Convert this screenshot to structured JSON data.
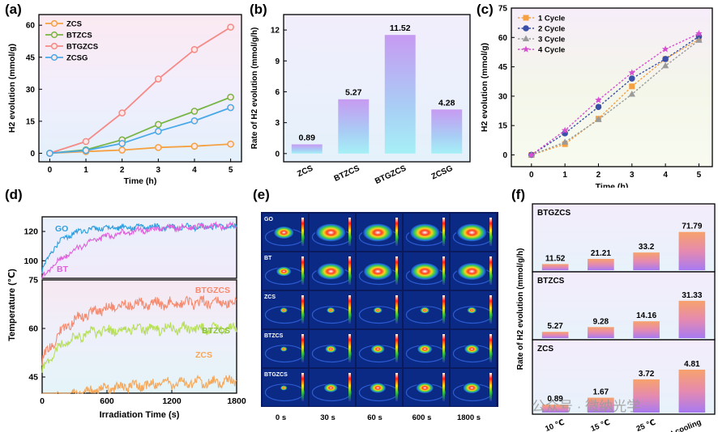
{
  "panel_labels": {
    "a": "(a)",
    "b": "(b)",
    "c": "(c)",
    "d": "(d)",
    "e": "(e)",
    "f": "(f)"
  },
  "watermark": "公众号 · 微纳光学",
  "chart_data": [
    {
      "id": "a",
      "type": "line",
      "xlabel": "Time (h)",
      "ylabel": "H2 evolution (mmol/g)",
      "x": [
        0,
        1,
        2,
        3,
        4,
        5
      ],
      "xticks": [
        "0",
        "1",
        "2",
        "3",
        "4",
        "5"
      ],
      "yticks": [
        "0",
        "15",
        "30",
        "45",
        "60"
      ],
      "ylim": [
        -4,
        65
      ],
      "xlim": [
        -0.3,
        5.3
      ],
      "legend": "top-left",
      "series": [
        {
          "name": "ZCS",
          "color": "#f5a142",
          "values": [
            0,
            0.8,
            1.5,
            2.7,
            3.3,
            4.3
          ]
        },
        {
          "name": "BTZCS",
          "color": "#78b545",
          "values": [
            0,
            1.6,
            6.3,
            13.5,
            19.7,
            26.3
          ]
        },
        {
          "name": "BTGZCS",
          "color": "#f58a86",
          "values": [
            0,
            5.5,
            18.9,
            34.8,
            48.6,
            59.1
          ]
        },
        {
          "name": "ZCSG",
          "color": "#4aa9e8",
          "values": [
            0,
            1.3,
            4.6,
            10.3,
            15.2,
            21.4
          ]
        }
      ]
    },
    {
      "id": "b",
      "type": "bar",
      "ylabel": "Rate of H2 evolution (mmol/g/h)",
      "categories": [
        "ZCS",
        "BTZCS",
        "BTGZCS",
        "ZCSG"
      ],
      "values": [
        0.89,
        5.27,
        11.52,
        4.28
      ],
      "labels": [
        "0.89",
        "5.27",
        "11.52",
        "4.28"
      ],
      "yticks": [
        "0",
        "3",
        "6",
        "9",
        "12"
      ],
      "ylim": [
        -0.8,
        13.5
      ]
    },
    {
      "id": "c",
      "type": "line",
      "xlabel": "Time (h)",
      "ylabel": "H2 evolution (mmol/g)",
      "x": [
        0,
        1,
        2,
        3,
        4,
        5
      ],
      "xticks": [
        "0",
        "1",
        "2",
        "3",
        "4",
        "5"
      ],
      "yticks": [
        "0",
        "15",
        "30",
        "45",
        "60",
        "75"
      ],
      "ylim": [
        -6,
        75
      ],
      "xlim": [
        -0.6,
        5.4
      ],
      "legend": "top-left",
      "series": [
        {
          "name": "1 Cycle",
          "color": "#f5a142",
          "marker": "square",
          "values": [
            0,
            5.5,
            18.5,
            35,
            49,
            59
          ]
        },
        {
          "name": "2 Cycle",
          "color": "#3a4fa8",
          "marker": "circle",
          "values": [
            0,
            11,
            24.5,
            39,
            49,
            60.5
          ]
        },
        {
          "name": "3 Cycle",
          "color": "#9a9a9a",
          "marker": "triangle",
          "values": [
            0,
            6.5,
            18,
            31,
            45.5,
            58.5
          ]
        },
        {
          "name": "4 Cycle",
          "color": "#d64fd0",
          "marker": "star",
          "values": [
            0,
            12.5,
            28,
            42,
            54,
            62
          ]
        }
      ]
    },
    {
      "id": "d",
      "type": "line",
      "xlabel": "Irradiation Time (s)",
      "ylabel": "Temperature (℃)",
      "xticks": [
        "0",
        "600",
        "1200",
        "1800"
      ],
      "xlim": [
        0,
        1800
      ],
      "top": {
        "yticks": [
          "100",
          "120"
        ],
        "ylim": [
          88,
          130
        ],
        "series": [
          {
            "name": "GO",
            "color": "#2f9fe0",
            "start": 93,
            "plateau": 123,
            "tau": 150
          },
          {
            "name": "BT",
            "color": "#e060dc",
            "start": 88,
            "plateau": 124,
            "tau": 380
          }
        ]
      },
      "bottom": {
        "yticks": [
          "45",
          "60",
          "75"
        ],
        "ylim": [
          40,
          75
        ],
        "series": [
          {
            "name": "BTGZCS",
            "color": "#f58a6e",
            "start": 50,
            "plateau": 68,
            "tau": 260
          },
          {
            "name": "BTZCS",
            "color": "#b7df5a",
            "start": 47,
            "plateau": 60,
            "tau": 200
          },
          {
            "name": "ZCS",
            "color": "#f5a75a",
            "start": 37,
            "plateau": 44,
            "tau": 600
          }
        ]
      }
    },
    {
      "id": "f",
      "type": "bar",
      "ylabel": "Rate of H2 evolution (mmol/g/h)",
      "categories": [
        "10 ℃",
        "15 ℃",
        "25 ℃",
        "Without cooling"
      ],
      "groups": [
        {
          "name": "BTGZCS",
          "values": [
            11.52,
            21.21,
            33.2,
            71.79
          ],
          "labels": [
            "11.52",
            "21.21",
            "33.2",
            "71.79"
          ],
          "max": 85
        },
        {
          "name": "BTZCS",
          "values": [
            5.27,
            9.28,
            14.16,
            31.33
          ],
          "labels": [
            "5.27",
            "9.28",
            "14.16",
            "31.33"
          ],
          "max": 38
        },
        {
          "name": "ZCS",
          "values": [
            0.89,
            1.67,
            3.72,
            4.81
          ],
          "labels": [
            "0.89",
            "1.67",
            "3.72",
            "4.81"
          ],
          "max": 5.8
        }
      ]
    }
  ],
  "thermal": {
    "rows": [
      "GO",
      "BT",
      "ZCS",
      "BTZCS",
      "BTGZCS"
    ],
    "cols": [
      "0 s",
      "30 s",
      "60 s",
      "600 s",
      "1800 s"
    ],
    "intensity": [
      [
        0.55,
        0.95,
        0.95,
        0.95,
        0.95
      ],
      [
        0.35,
        0.85,
        0.9,
        0.9,
        0.9
      ],
      [
        0.05,
        0.08,
        0.1,
        0.12,
        0.12
      ],
      [
        0.02,
        0.2,
        0.3,
        0.35,
        0.35
      ],
      [
        0.02,
        0.3,
        0.4,
        0.45,
        0.45
      ]
    ]
  }
}
